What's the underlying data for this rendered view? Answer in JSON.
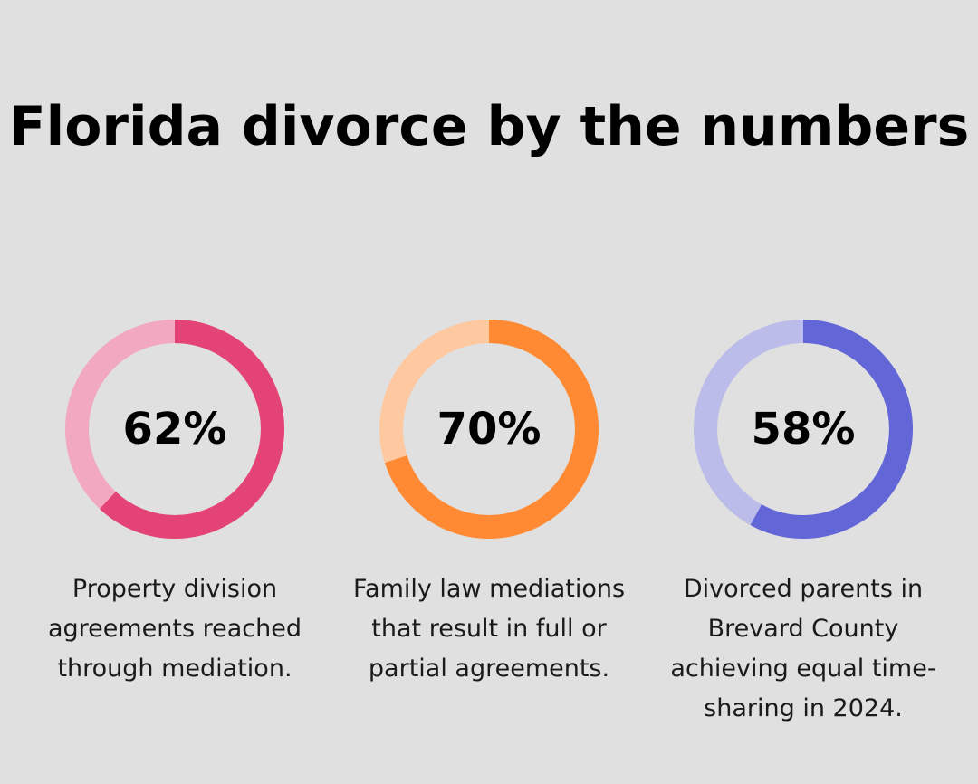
{
  "title": "Florida divorce by the numbers",
  "chart_data": [
    {
      "type": "pie",
      "value": 62,
      "label": "62%",
      "caption": "Property division agreements reached through mediation.",
      "color": "#e34475",
      "track_color": "#f2a8c0"
    },
    {
      "type": "pie",
      "value": 70,
      "label": "70%",
      "caption": "Family law mediations that result in full or partial agreements.",
      "color": "#ff8a33",
      "track_color": "#fec8a0"
    },
    {
      "type": "pie",
      "value": 58,
      "label": "58%",
      "caption": "Divorced parents in Brevard County achieving equal time-sharing in 2024.",
      "color": "#6366d6",
      "track_color": "#bbbce9"
    }
  ]
}
